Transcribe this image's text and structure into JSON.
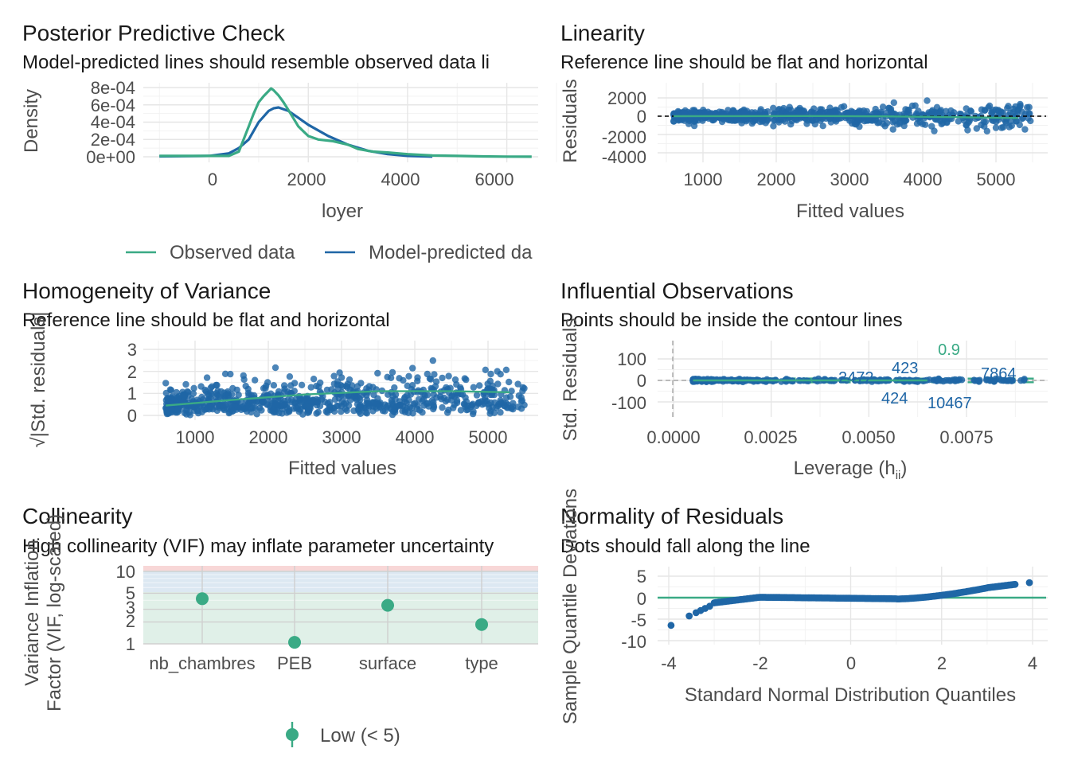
{
  "colors": {
    "observed": "#3aaa85",
    "predicted": "#1f66a6",
    "points": "#1f66a6",
    "reference": "#3aaa85"
  },
  "panels": {
    "ppc": {
      "title": "Posterior Predictive Check",
      "subtitle": "Model-predicted lines should resemble observed data li",
      "xlabel": "loyer",
      "ylabel": "Density",
      "legend": {
        "observed": "Observed data",
        "predicted": "Model-predicted da"
      },
      "xticks": [
        "0",
        "2000",
        "4000",
        "6000"
      ],
      "yticks": [
        "0e+00",
        "2e-04",
        "4e-04",
        "6e-04",
        "8e-04"
      ]
    },
    "linearity": {
      "title": "Linearity",
      "subtitle": "Reference line should be flat and horizontal",
      "xlabel": "Fitted values",
      "ylabel": "Residuals",
      "xticks": [
        "1000",
        "2000",
        "3000",
        "4000",
        "5000"
      ],
      "yticks": [
        "-4000",
        "-2000",
        "0",
        "2000"
      ]
    },
    "homogeneity": {
      "title": "Homogeneity of Variance",
      "subtitle": "Reference line should be flat and horizontal",
      "xlabel": "Fitted values",
      "ylabel": "√|Std. residuals|",
      "xticks": [
        "1000",
        "2000",
        "3000",
        "4000",
        "5000"
      ],
      "yticks": [
        "0",
        "1",
        "2",
        "3"
      ]
    },
    "influential": {
      "title": "Influential Observations",
      "subtitle": "Points should be inside the contour lines",
      "xlabel": "Leverage (h",
      "xlabel_sub": "ii",
      "xlabel_end": ")",
      "ylabel": "Std. Residuals",
      "xticks": [
        "0.0000",
        "0.0025",
        "0.0050",
        "0.0075"
      ],
      "yticks": [
        "-100",
        "0",
        "100"
      ],
      "contour_label": "0.9",
      "point_labels": [
        "2472",
        "423",
        "7864",
        "424",
        "10467"
      ]
    },
    "collinearity": {
      "title": "Collinearity",
      "subtitle": "High collinearity (VIF) may inflate parameter uncertainty",
      "ylabel_line1": "Variance Inflation",
      "ylabel_line2": "Factor (VIF, log-scaled)",
      "xticks": [
        "nb_chambres",
        "PEB",
        "surface",
        "type"
      ],
      "yticks": [
        "1",
        "2",
        "3",
        "5",
        "10"
      ],
      "legend": "Low (< 5)"
    },
    "normality": {
      "title": "Normality of Residuals",
      "subtitle": "Dots should fall along the line",
      "xlabel": "Standard Normal Distribution Quantiles",
      "ylabel": "Sample Quantile Deviations",
      "xticks": [
        "-4",
        "-2",
        "0",
        "2",
        "4"
      ],
      "yticks": [
        "-10",
        "-5",
        "0",
        "5"
      ]
    }
  },
  "chart_data": [
    {
      "type": "line",
      "panel": "Posterior Predictive Check",
      "xlabel": "loyer",
      "ylabel": "Density",
      "xlim": [
        -1100,
        6600
      ],
      "ylim": [
        0,
        0.0008
      ],
      "series": [
        {
          "name": "Observed data",
          "x": [
            -1000,
            400,
            600,
            800,
            900,
            1000,
            1100,
            1200,
            1250,
            1300,
            1400,
            1500,
            1600,
            1800,
            2000,
            2200,
            2500,
            2800,
            3000,
            3300,
            3600,
            4000,
            4500,
            5000,
            5500,
            6000,
            6500
          ],
          "y": [
            1e-05,
            1e-05,
            6e-05,
            0.00035,
            0.0005,
            0.00063,
            0.0007,
            0.00076,
            0.00079,
            0.00077,
            0.00071,
            0.00063,
            0.00054,
            0.00035,
            0.00024,
            0.0002,
            0.00018,
            0.00014,
            9e-05,
            6e-05,
            5e-05,
            3e-05,
            1.5e-05,
            1e-05,
            5e-06,
            2e-06,
            1e-06
          ]
        },
        {
          "name": "Model-predicted data",
          "x": [
            -1000,
            0,
            400,
            600,
            800,
            1000,
            1200,
            1300,
            1400,
            1600,
            1800,
            2000,
            2400,
            2800,
            3200,
            3600,
            4000,
            4500
          ],
          "y": [
            5e-06,
            1e-05,
            4e-05,
            0.0001,
            0.0002,
            0.0004,
            0.00053,
            0.00056,
            0.00057,
            0.00053,
            0.00045,
            0.00037,
            0.00024,
            0.00014,
            7e-05,
            3e-05,
            1e-05,
            2e-06
          ]
        }
      ]
    },
    {
      "type": "scatter",
      "panel": "Linearity",
      "xlabel": "Fitted values",
      "ylabel": "Residuals",
      "xlim": [
        500,
        5500
      ],
      "ylim": [
        -4300,
        3000
      ],
      "reference_y": 0,
      "smooth": {
        "x": [
          600,
          1500,
          2500,
          3500,
          4500,
          5300
        ],
        "y": [
          0,
          10,
          20,
          -20,
          -100,
          -200
        ]
      }
    },
    {
      "type": "scatter",
      "panel": "Homogeneity of Variance",
      "xlabel": "Fitted values",
      "ylabel": "√|Std. residuals|",
      "xlim": [
        500,
        5500
      ],
      "ylim": [
        0,
        3.2
      ],
      "smooth": {
        "x": [
          600,
          1500,
          2500,
          3500,
          4500,
          5300
        ],
        "y": [
          0.45,
          0.7,
          0.95,
          1.1,
          1.1,
          1.05
        ]
      }
    },
    {
      "type": "scatter",
      "panel": "Influential Observations",
      "xlabel": "Leverage (hii)",
      "ylabel": "Std. Residuals",
      "xlim": [
        -0.0005,
        0.0095
      ],
      "ylim": [
        -170,
        170
      ],
      "labels": [
        {
          "text": "2472",
          "x": 0.0023,
          "y": 5
        },
        {
          "text": "423",
          "x": 0.0059,
          "y": 30
        },
        {
          "text": "7864",
          "x": 0.0087,
          "y": 15
        },
        {
          "text": "424",
          "x": 0.0058,
          "y": -40
        },
        {
          "text": "10467",
          "x": 0.0074,
          "y": -55
        }
      ]
    },
    {
      "type": "scatter",
      "panel": "Collinearity",
      "categories": [
        "nb_chambres",
        "PEB",
        "surface",
        "type"
      ],
      "values": [
        4.2,
        1.05,
        3.4,
        1.85
      ],
      "ylim": [
        1,
        11
      ],
      "ylabel": "Variance Inflation Factor (VIF, log-scaled)",
      "legend": "Low (< 5)"
    },
    {
      "type": "scatter",
      "panel": "Normality of Residuals",
      "xlabel": "Standard Normal Distribution Quantiles",
      "ylabel": "Sample Quantile Deviations",
      "xlim": [
        -4.3,
        4.3
      ],
      "ylim": [
        -11,
        8
      ],
      "reference_y": 0
    }
  ]
}
